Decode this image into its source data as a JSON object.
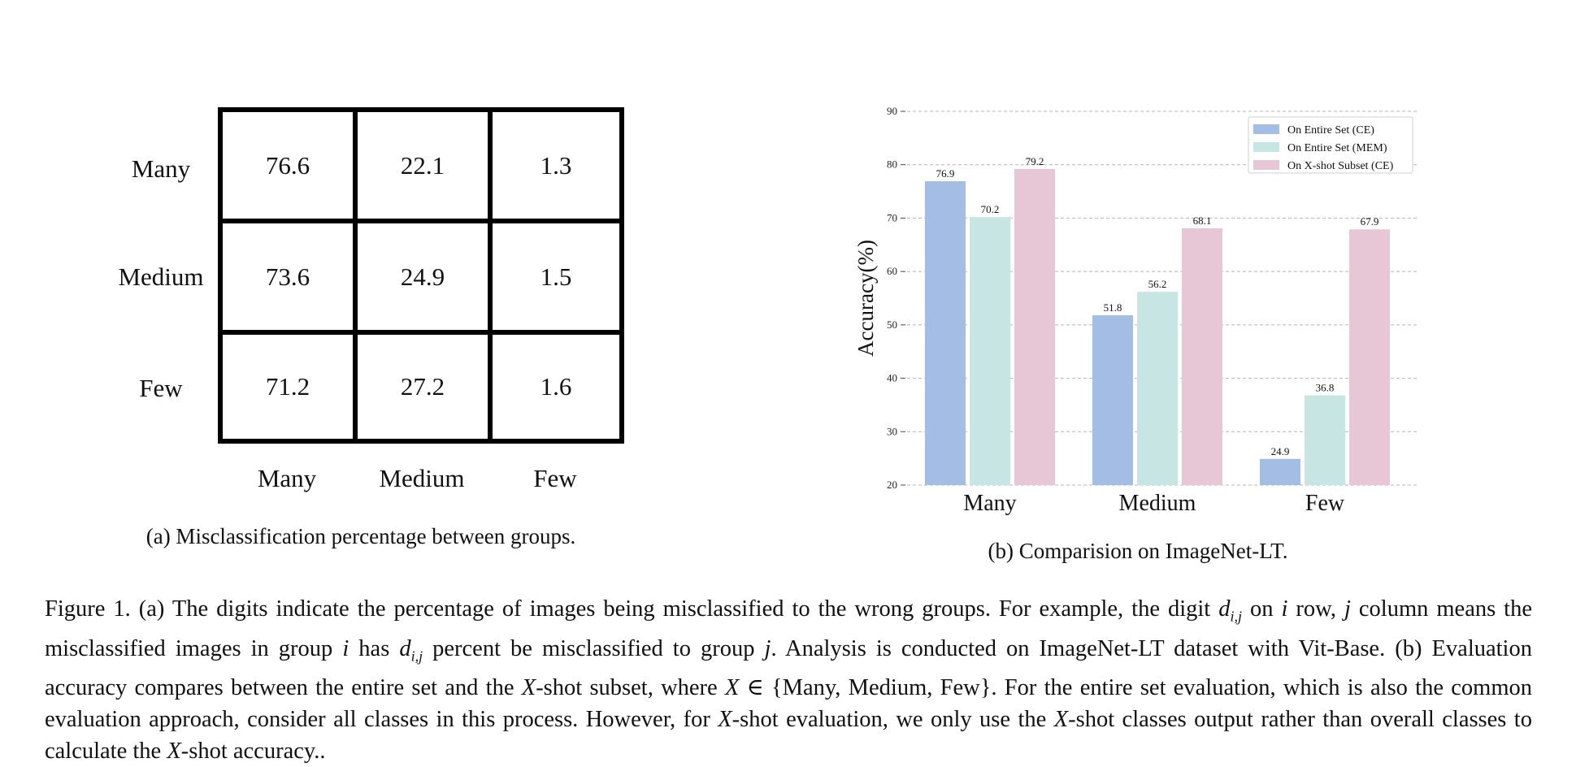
{
  "panel_a": {
    "row_labels": [
      "Many",
      "Medium",
      "Few"
    ],
    "col_labels": [
      "Many",
      "Medium",
      "Few"
    ],
    "matrix": [
      [
        "76.6",
        "22.1",
        "1.3"
      ],
      [
        "73.6",
        "24.9",
        "1.5"
      ],
      [
        "71.2",
        "27.2",
        "1.6"
      ]
    ],
    "caption": "(a) Misclassification percentage between groups."
  },
  "panel_b": {
    "caption": "(b) Comparision on ImageNet-LT."
  },
  "chart_data": {
    "type": "bar",
    "categories": [
      "Many",
      "Medium",
      "Few"
    ],
    "series": [
      {
        "name": "On Entire Set (CE)",
        "values": [
          76.9,
          51.8,
          24.9
        ],
        "color": "#a3bde4"
      },
      {
        "name": "On Entire Set (MEM)",
        "values": [
          70.2,
          56.2,
          36.8
        ],
        "color": "#c7e5e2"
      },
      {
        "name": "On X-shot Subset (CE)",
        "values": [
          79.2,
          68.1,
          67.9
        ],
        "color": "#e7c7d5"
      }
    ],
    "ylabel": "Accuracy(%)",
    "xlabel": "",
    "ylim": [
      20,
      90
    ],
    "yticks": [
      20,
      30,
      40,
      50,
      60,
      70,
      80,
      90
    ],
    "grid": true,
    "legend": "top-right",
    "data_labels": true
  },
  "figure_caption": {
    "p1": "Figure 1. (a) The digits indicate the percentage of images being misclassified to the wrong groups. For example, the digit ",
    "d": "d",
    "dsub": "i,j",
    "p2": " on ",
    "i": "i",
    "p3": " row,",
    "j": "j",
    "p4": " column means the misclassified images in group ",
    "i2": "i",
    "p5": " has ",
    "d2": "d",
    "dsub2": "i,j",
    "p6": " percent be misclassified to group ",
    "j2": "j",
    "p7": ". Analysis is conducted on ImageNet-LT dataset with Vit-Base. (b) Evaluation accuracy compares between the entire set and the ",
    "x1": "X",
    "p8": "-shot subset, where ",
    "x2": "X",
    "p9": " ∈ {Many, Medium, Few}. For the entire set evaluation, which is also the common evaluation approach, consider all classes in this process. However, for ",
    "x3": "X",
    "p10": "-shot evaluation, we only use the ",
    "x4": "X",
    "p11": "-shot classes output rather than overall classes to calculate the ",
    "x5": "X",
    "p12": "-shot accuracy.."
  }
}
